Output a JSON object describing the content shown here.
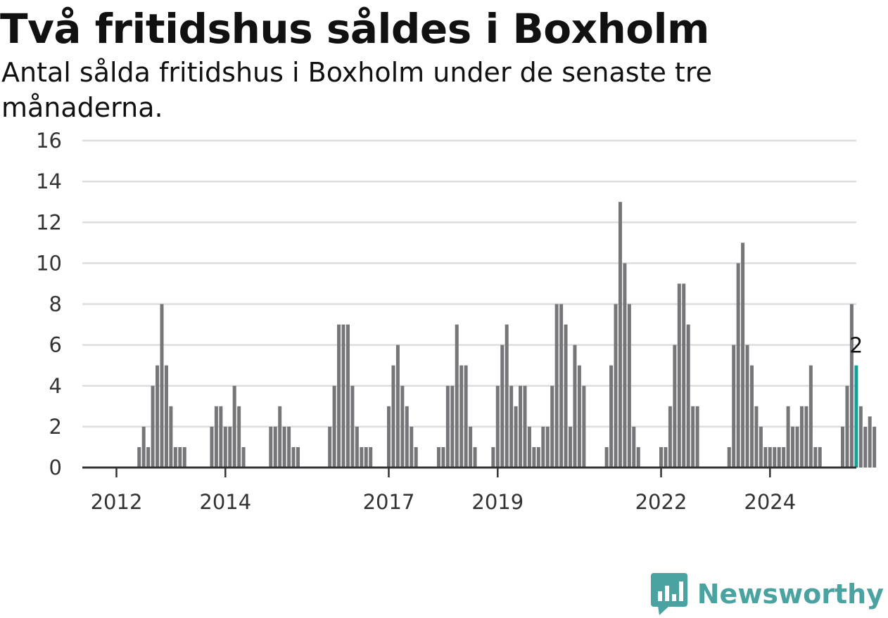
{
  "header": {
    "title": "Två fritidshus såldes i Boxholm",
    "subtitle": "Antal sålda fritidshus i Boxholm under de senaste tre månaderna."
  },
  "brand": {
    "name": "Newsworthy",
    "icon": "newsworthy-logo-icon",
    "color": "#4aa3a0"
  },
  "colors": {
    "bar": "#76767a",
    "highlight": "#1a9e94",
    "grid": "#dddddd",
    "axis": "#333333"
  },
  "chart_data": {
    "type": "bar",
    "title": "Två fritidshus såldes i Boxholm",
    "subtitle": "Antal sålda fritidshus i Boxholm under de senaste tre månaderna.",
    "xlabel": "",
    "ylabel": "",
    "ylim": [
      0,
      16
    ],
    "yticks": [
      0,
      2,
      4,
      6,
      8,
      10,
      12,
      14,
      16
    ],
    "xticks": [
      "2012",
      "2014",
      "2017",
      "2019",
      "2022",
      "2024"
    ],
    "grid": true,
    "legend": "none",
    "start": "2011-09",
    "frequency": "monthly",
    "values": [
      0,
      0,
      0,
      0,
      0,
      0,
      0,
      0,
      0,
      1,
      2,
      1,
      4,
      5,
      8,
      5,
      3,
      1,
      1,
      1,
      0,
      0,
      0,
      0,
      0,
      2,
      3,
      3,
      2,
      2,
      4,
      3,
      1,
      0,
      0,
      0,
      0,
      0,
      2,
      2,
      3,
      2,
      2,
      1,
      1,
      0,
      0,
      0,
      0,
      0,
      0,
      2,
      4,
      7,
      7,
      7,
      4,
      2,
      1,
      1,
      1,
      0,
      0,
      0,
      3,
      5,
      6,
      4,
      3,
      2,
      1,
      0,
      0,
      0,
      0,
      1,
      1,
      4,
      4,
      7,
      5,
      5,
      2,
      1,
      0,
      0,
      0,
      1,
      4,
      6,
      7,
      4,
      3,
      4,
      4,
      2,
      1,
      1,
      2,
      2,
      4,
      8,
      8,
      7,
      2,
      6,
      5,
      4,
      0,
      0,
      0,
      0,
      1,
      5,
      8,
      13,
      10,
      8,
      2,
      1,
      0,
      0,
      0,
      0,
      1,
      1,
      3,
      6,
      9,
      9,
      7,
      3,
      3,
      0,
      0,
      0,
      0,
      0,
      0,
      1,
      6,
      10,
      11,
      6,
      5,
      3,
      2,
      1,
      1,
      1,
      1,
      1,
      3,
      2,
      2,
      3,
      3,
      5,
      1,
      1,
      0,
      0,
      0,
      0,
      2,
      4,
      8,
      5,
      3,
      2,
      2.5,
      2
    ],
    "highlight_index": 167,
    "highlight_label": "2"
  }
}
